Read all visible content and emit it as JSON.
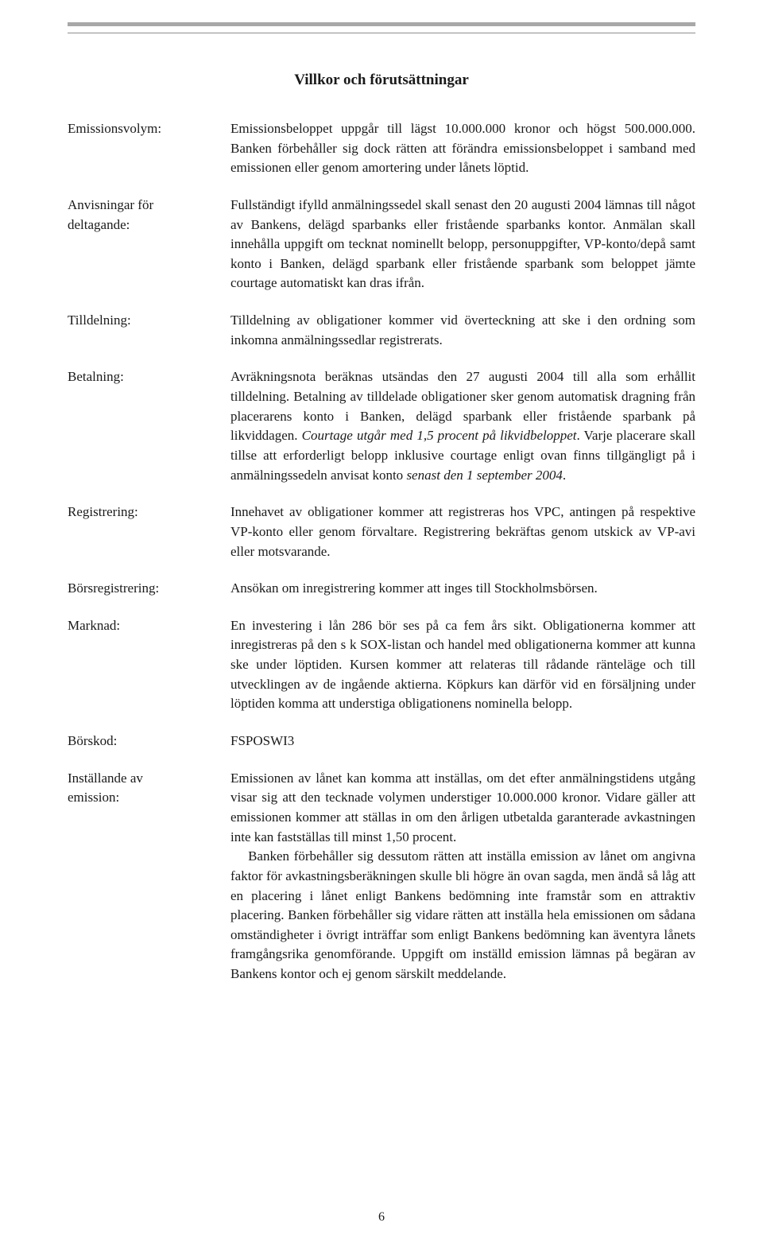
{
  "title": "Villkor och förutsättningar",
  "rows": {
    "r0": {
      "label": "Emissionsvolym:",
      "text": "Emissionsbeloppet uppgår till lägst 10.000.000 kronor och högst 500.000.000. Banken förbehåller sig dock rätten att förändra emissionsbeloppet i samband med emissionen eller genom amortering under lånets löptid."
    },
    "r1": {
      "label_line1": "Anvisningar för",
      "label_line2": "deltagande:",
      "text": "Fullständigt ifylld anmälningssedel skall senast den 20 augusti 2004 lämnas till något av Bankens, delägd sparbanks eller fristående sparbanks kontor. Anmälan skall innehålla uppgift om tecknat nominellt belopp, personuppgifter, VP-konto/depå samt konto i Banken, delägd sparbank eller fristående sparbank som beloppet jämte courtage automatiskt kan dras ifrån."
    },
    "r2": {
      "label": "Tilldelning:",
      "text": "Tilldelning av obligationer kommer vid överteckning att ske i den ordning som inkomna anmälningssedlar registrerats."
    },
    "r3": {
      "label": "Betalning:",
      "pre": "Avräkningsnota beräknas utsändas den 27 augusti 2004 till alla som erhållit tilldelning. Betalning av tilldelade obligationer sker genom automatisk dragning från placerarens konto i Banken, delägd sparbank eller fristående sparbank på likviddagen. ",
      "italic1": "Courtage utgår med 1,5 procent på likvidbeloppet",
      "mid": ". Varje placerare skall tillse att erforderligt belopp inklusive courtage enligt ovan finns tillgängligt på i anmälningssedeln anvisat konto ",
      "italic2": "senast den 1 september 2004",
      "post": "."
    },
    "r4": {
      "label": "Registrering:",
      "text": "Innehavet av obligationer kommer att registreras hos VPC, antingen på respektive VP-konto eller genom förvaltare. Registrering bekräftas genom utskick av VP-avi eller motsvarande."
    },
    "r5": {
      "label": "Börsregistrering:",
      "text": "Ansökan om inregistrering kommer att inges till Stockholmsbörsen."
    },
    "r6": {
      "label": "Marknad:",
      "text": "En investering i lån 286 bör ses på ca fem års sikt. Obligationerna kommer att inregistreras på den s k SOX-listan och handel med obligationerna kommer att kunna ske under löptiden. Kursen kommer att relateras till rådande ränteläge och till utvecklingen av de ingående aktierna. Köpkurs kan därför vid en försäljning under löptiden komma att understiga obligationens nominella belopp."
    },
    "r7": {
      "label": "Börskod:",
      "text": "FSPOSWI3"
    },
    "r8": {
      "label_line1": "Inställande av",
      "label_line2": "emission:",
      "para1": "Emissionen av lånet kan komma att inställas, om det efter anmälningstidens utgång visar sig att den tecknade volymen understiger 10.000.000 kronor. Vidare gäller att emissionen kommer att ställas in om den årligen utbetalda garanterade avkastningen inte kan fastställas till minst 1,50 procent.",
      "para2": "Banken förbehåller sig dessutom rätten att inställa emission av lånet om angivna faktor för avkastningsberäkningen skulle bli högre än ovan sagda, men ändå så låg att en placering i lånet enligt Bankens bedömning inte framstår som en attraktiv placering. Banken förbehåller sig vidare rätten att inställa hela emissionen om sådana omständigheter i övrigt inträffar som enligt Bankens bedömning kan äventyra lånets framgångsrika genomförande. Uppgift om inställd emission lämnas på begäran av Bankens kontor och ej genom särskilt meddelande."
    }
  },
  "page_number": "6",
  "colors": {
    "thick_rule": "#a8a8a8",
    "thin_rule": "#8f8f8f",
    "text": "#1a1a1a",
    "background": "#ffffff"
  }
}
